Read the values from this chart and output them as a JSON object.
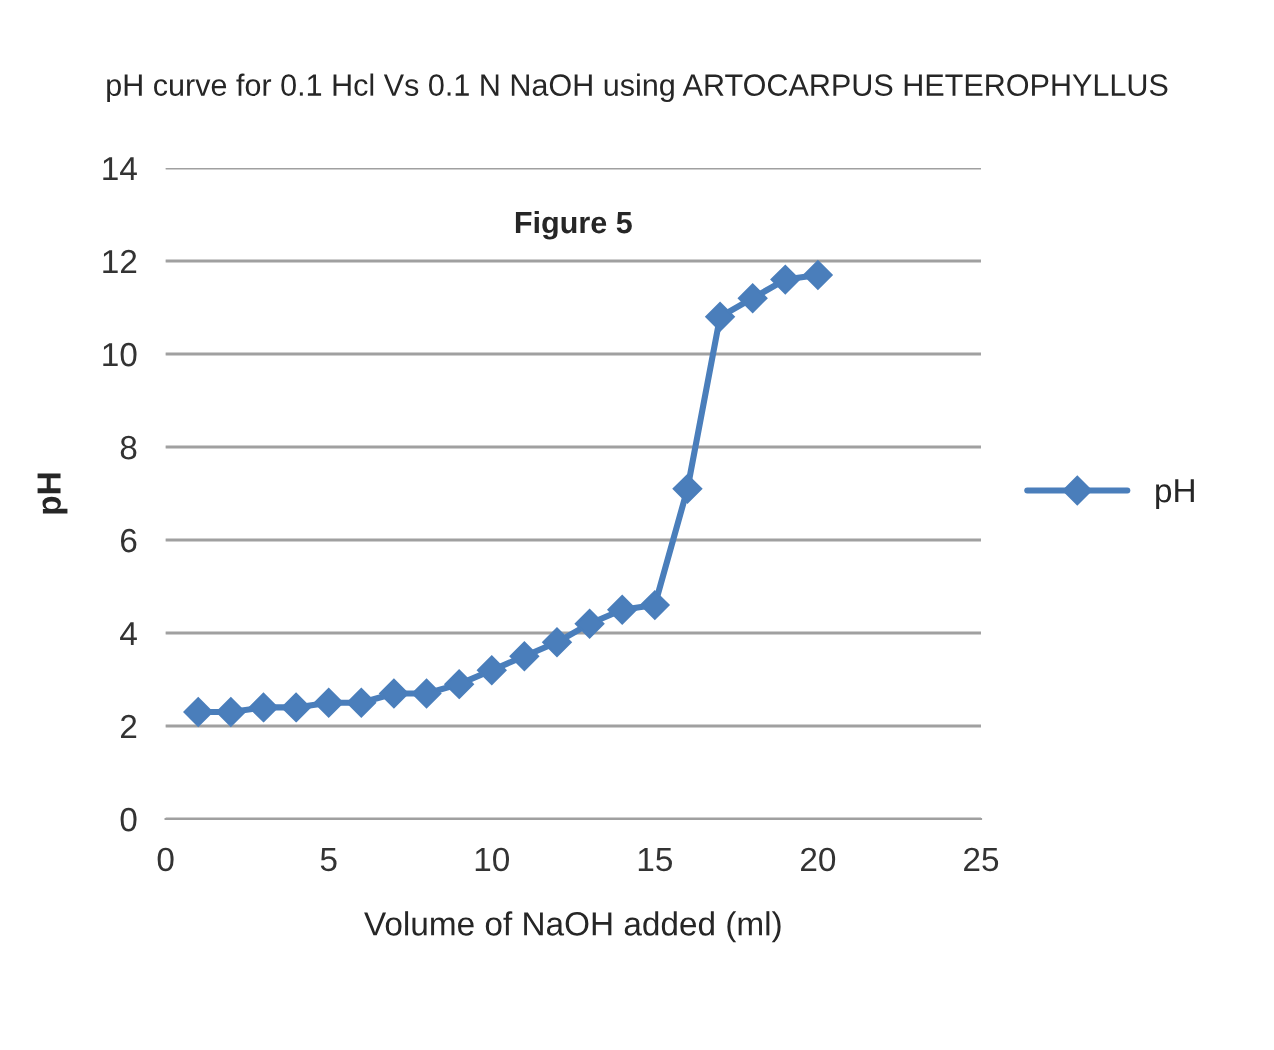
{
  "chart_data": {
    "type": "line",
    "title": "pH curve for 0.1 Hcl Vs 0.1 N NaOH using ARTOCARPUS HETEROPHYLLUS",
    "xlabel": "Volume of NaOH added (ml)",
    "ylabel": "pH",
    "annotations": [
      "Figure 5"
    ],
    "x": [
      1,
      2,
      3,
      4,
      5,
      6,
      7,
      8,
      9,
      10,
      11,
      12,
      13,
      14,
      15,
      16,
      17,
      18,
      19,
      20
    ],
    "series": [
      {
        "name": "pH",
        "color": "#4a7ebb",
        "values": [
          2.3,
          2.3,
          2.4,
          2.4,
          2.5,
          2.5,
          2.7,
          2.7,
          2.9,
          3.2,
          3.5,
          3.8,
          4.2,
          4.5,
          4.6,
          7.1,
          10.8,
          11.2,
          11.6,
          11.7
        ]
      }
    ],
    "xlim": [
      0,
      25
    ],
    "xticks": [
      0,
      5,
      10,
      15,
      20,
      25
    ],
    "ylim": [
      0,
      14
    ],
    "yticks": [
      0,
      2,
      4,
      6,
      8,
      10,
      12,
      14
    ],
    "grid": "y",
    "legend": "right",
    "marker": "diamond",
    "line_style": "solid"
  }
}
